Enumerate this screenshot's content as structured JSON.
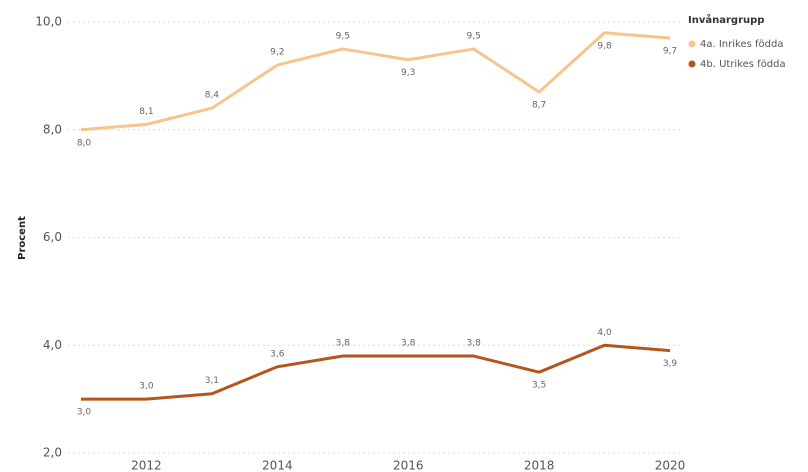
{
  "chart_data": {
    "type": "line",
    "y_label": "Procent",
    "legend_title": "Invånargrupp",
    "x": [
      2011,
      2012,
      2013,
      2014,
      2015,
      2016,
      2017,
      2018,
      2019,
      2020
    ],
    "xlim": [
      2011,
      2020
    ],
    "xticks": [
      2012,
      2014,
      2016,
      2018,
      2020
    ],
    "ylim": [
      2,
      10
    ],
    "yticks": [
      {
        "value": 2,
        "label": "2,0"
      },
      {
        "value": 4,
        "label": "4,0"
      },
      {
        "value": 6,
        "label": "6,0"
      },
      {
        "value": 8,
        "label": "8,0"
      },
      {
        "value": 10,
        "label": "10,0"
      }
    ],
    "grid": true,
    "series": [
      {
        "name": "4a. Inrikes födda",
        "color": "#f8c48e",
        "values": [
          8.0,
          8.1,
          8.4,
          9.2,
          9.5,
          9.3,
          9.5,
          8.7,
          9.8,
          9.7
        ],
        "value_labels": [
          "8,0",
          "8,1",
          "8,4",
          "9,2",
          "9,5",
          "9,3",
          "9,5",
          "8,7",
          "9,8",
          "9,7"
        ]
      },
      {
        "name": "4b. Utrikes födda",
        "color": "#b4561c",
        "values": [
          3.0,
          3.0,
          3.1,
          3.6,
          3.8,
          3.8,
          3.8,
          3.5,
          4.0,
          3.9
        ],
        "value_labels": [
          "3,0",
          "3,0",
          "3,1",
          "3,6",
          "3,8",
          "3,8",
          "3,8",
          "3,5",
          "4,0",
          "3,9"
        ]
      }
    ]
  }
}
